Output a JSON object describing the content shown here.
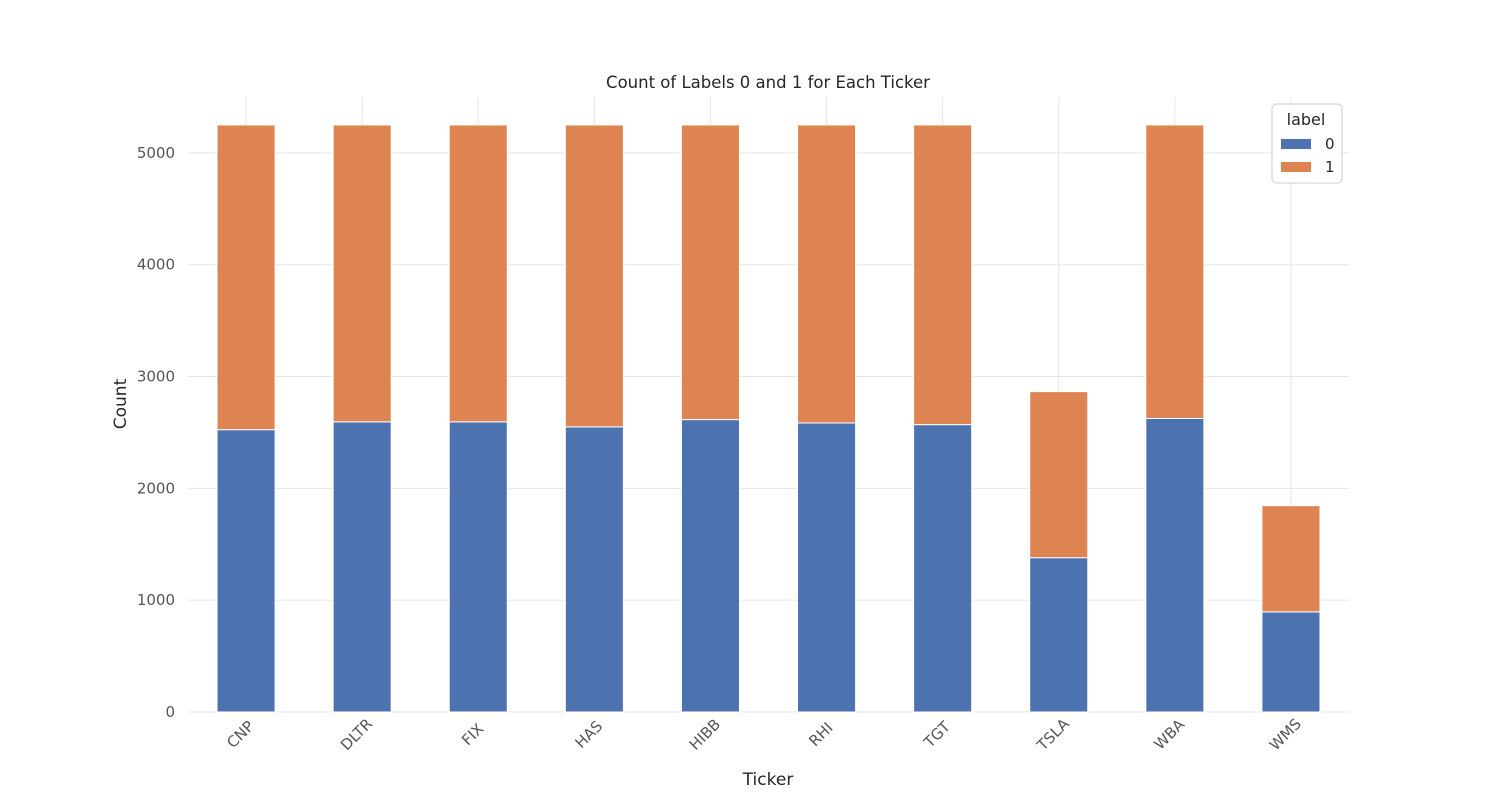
{
  "chart_data": {
    "type": "bar",
    "stacked": true,
    "title": "Count of Labels 0 and 1 for Each Ticker",
    "xlabel": "Ticker",
    "ylabel": "Count",
    "categories": [
      "CNP",
      "DLTR",
      "FIX",
      "HAS",
      "HIBB",
      "RHI",
      "TGT",
      "TSLA",
      "WBA",
      "WMS"
    ],
    "series": [
      {
        "name": "0",
        "color": "#4c72b0",
        "values": [
          2525,
          2595,
          2595,
          2550,
          2615,
          2585,
          2570,
          1380,
          2625,
          895
        ]
      },
      {
        "name": "1",
        "color": "#dd8452",
        "values": [
          2725,
          2655,
          2655,
          2700,
          2635,
          2665,
          2680,
          1485,
          2625,
          950
        ]
      }
    ],
    "ylim": [
      0,
      5500
    ],
    "yticks": [
      0,
      1000,
      2000,
      3000,
      4000,
      5000
    ],
    "grid": true,
    "legend": {
      "title": "label",
      "placement": "top-right"
    },
    "xtick_rotation": -45
  }
}
